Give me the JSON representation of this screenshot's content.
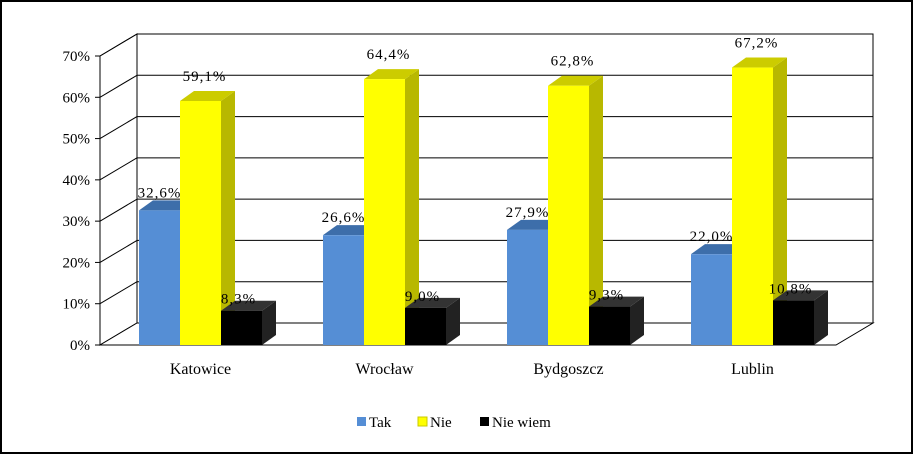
{
  "chart_data": {
    "type": "bar",
    "categories": [
      "Katowice",
      "Wrocław",
      "Bydgoszcz",
      "Lublin"
    ],
    "series": [
      {
        "name": "Tak",
        "values": [
          32.6,
          26.6,
          27.9,
          22.0
        ],
        "labels": [
          "32,6%",
          "26,6%",
          "27,9%",
          "22,0%"
        ],
        "color": "#558ed5"
      },
      {
        "name": "Nie",
        "values": [
          59.1,
          64.4,
          62.8,
          67.2
        ],
        "labels": [
          "59,1%",
          "64,4%",
          "62,8%",
          "67,2%"
        ],
        "color": "#ffff00"
      },
      {
        "name": "Nie wiem",
        "values": [
          8.3,
          9.0,
          9.3,
          10.8
        ],
        "labels": [
          "8,3%",
          "9,0%",
          "9,3%",
          "10,8%"
        ],
        "color": "#000000"
      }
    ],
    "yticks": [
      "0%",
      "10%",
      "20%",
      "30%",
      "40%",
      "50%",
      "60%",
      "70%"
    ],
    "ylim": [
      0,
      70
    ],
    "grid": true,
    "legend": "bottom"
  }
}
